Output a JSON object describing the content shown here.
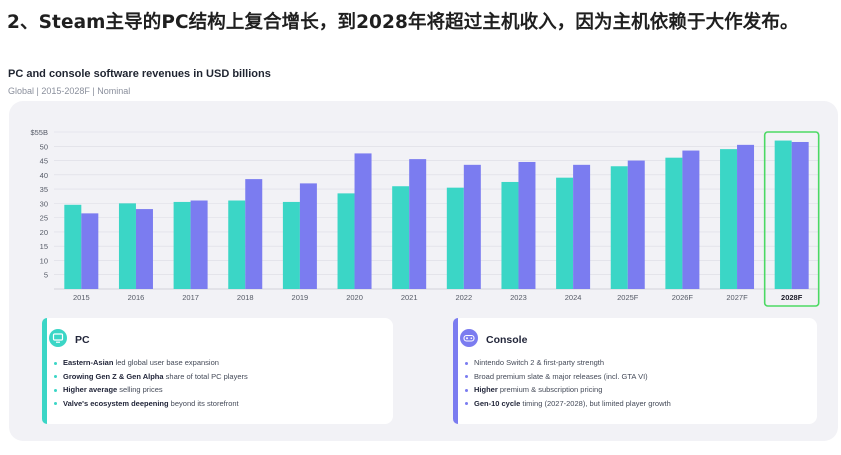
{
  "headline": "2、Steam主导的PC结构上复合增长，到2028年将超过主机收入，因为主机依赖于大作发布。",
  "colors": {
    "pc": "#3bd6c6",
    "console": "#7b7cf0",
    "highlight": "#4cd964",
    "panel": "#f2f2f6"
  },
  "chart_data": {
    "type": "bar",
    "title": "PC and console software revenues in USD billions",
    "subtitle": "Global | 2015-2028F | Nominal",
    "categories": [
      "2015",
      "2016",
      "2017",
      "2018",
      "2019",
      "2020",
      "2021",
      "2022",
      "2023",
      "2024",
      "2025F",
      "2026F",
      "2027F",
      "2028F"
    ],
    "series": [
      {
        "name": "PC",
        "values": [
          29.5,
          30,
          30.5,
          31,
          30.5,
          33.5,
          36,
          35.5,
          37.5,
          39,
          43,
          46,
          49,
          52
        ]
      },
      {
        "name": "Console",
        "values": [
          26.5,
          28,
          31,
          38.5,
          37,
          47.5,
          45.5,
          43.5,
          44.5,
          43.5,
          45,
          48.5,
          50.5,
          51.5
        ]
      }
    ],
    "ylim": [
      0,
      55
    ],
    "yticks": [
      "$55B",
      "50",
      "45",
      "40",
      "35",
      "30",
      "25",
      "20",
      "15",
      "10",
      "5"
    ],
    "ytick_values": [
      55,
      50,
      45,
      40,
      35,
      30,
      25,
      20,
      15,
      10,
      5
    ],
    "highlight_category": "2028F",
    "grid": true
  },
  "cards": {
    "pc": {
      "title": "PC",
      "icon": "monitor-icon",
      "bullets": [
        {
          "bold": "Eastern-Asian",
          "text": " led global user base expansion"
        },
        {
          "bold": "Growing Gen Z & Gen Alpha",
          "text": " share of total PC players"
        },
        {
          "bold": "Higher average",
          "text": " selling prices"
        },
        {
          "bold": "Valve's ecosystem deepening",
          "text": " beyond its storefront"
        }
      ]
    },
    "console": {
      "title": "Console",
      "icon": "gamepad-icon",
      "bullets": [
        {
          "bold": "",
          "text": "Nintendo Switch 2 & first-party strength"
        },
        {
          "bold": "",
          "text": "Broad premium slate & major releases (incl. GTA VI)"
        },
        {
          "bold": "Higher",
          "text": " premium & subscription pricing"
        },
        {
          "bold": "Gen-10 cycle",
          "text": " timing (2027-2028), but limited player growth"
        }
      ]
    }
  }
}
